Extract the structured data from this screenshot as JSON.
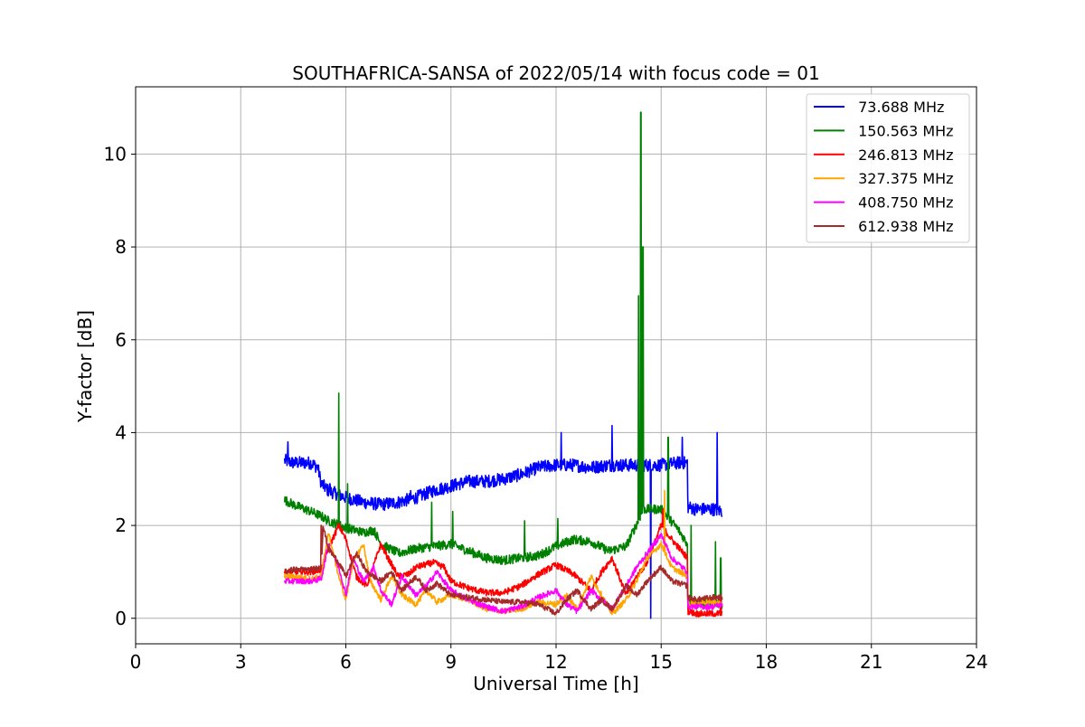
{
  "chart_data": {
    "type": "line",
    "title": "SOUTHAFRICA-SANSA of 2022/05/14 with focus code = 01",
    "xlabel": "Universal Time [h]",
    "ylabel": "Y-factor [dB]",
    "xlim": [
      0,
      24
    ],
    "ylim": [
      -0.55,
      11.45
    ],
    "x_ticks": [
      0,
      3,
      6,
      9,
      12,
      15,
      18,
      21,
      24
    ],
    "x_tick_labels": [
      "0",
      "3",
      "6",
      "9",
      "12",
      "15",
      "18",
      "21",
      "24"
    ],
    "y_ticks": [
      0,
      2,
      4,
      6,
      8,
      10
    ],
    "y_tick_labels": [
      "0",
      "2",
      "4",
      "6",
      "8",
      "10"
    ],
    "grid": true,
    "legend_position": "top-right",
    "series": [
      {
        "name": " 73.688 MHz",
        "color": "#0000ff",
        "noise": 0.14,
        "x": [
          4.25,
          4.5,
          5.0,
          5.2,
          5.3,
          5.5,
          6.0,
          6.5,
          7.0,
          7.5,
          8.0,
          8.5,
          9.0,
          9.5,
          10.0,
          10.5,
          11.0,
          11.5,
          12.0,
          12.5,
          13.0,
          13.5,
          14.0,
          14.5,
          15.0,
          15.5,
          15.75,
          15.76,
          16.0,
          16.5,
          16.75
        ],
        "y": [
          3.4,
          3.35,
          3.35,
          3.25,
          2.9,
          2.75,
          2.6,
          2.5,
          2.45,
          2.5,
          2.6,
          2.75,
          2.85,
          2.95,
          2.95,
          3.0,
          3.1,
          3.25,
          3.3,
          3.3,
          3.25,
          3.3,
          3.3,
          3.3,
          3.3,
          3.35,
          3.35,
          2.4,
          2.35,
          2.35,
          2.3
        ],
        "spikes": [
          [
            4.35,
            3.8
          ],
          [
            5.55,
            2.9
          ],
          [
            7.85,
            2.75
          ],
          [
            10.9,
            3.2
          ],
          [
            12.15,
            4.0
          ],
          [
            13.6,
            4.15
          ],
          [
            14.4,
            4.05
          ],
          [
            14.7,
            0.0
          ],
          [
            15.6,
            3.9
          ],
          [
            16.6,
            4.0
          ]
        ]
      },
      {
        "name": " 150.563 MHz",
        "color": "#008000",
        "noise": 0.1,
        "x": [
          4.25,
          4.5,
          5.0,
          5.3,
          5.5,
          6.0,
          6.5,
          6.8,
          7.0,
          7.5,
          8.0,
          8.5,
          9.0,
          9.5,
          10.0,
          10.5,
          11.0,
          11.5,
          12.0,
          12.5,
          13.0,
          13.5,
          14.0,
          14.5,
          15.0,
          15.5,
          15.75,
          15.76,
          16.0,
          16.5,
          16.75
        ],
        "y": [
          2.55,
          2.45,
          2.3,
          2.2,
          2.1,
          1.95,
          1.85,
          1.9,
          1.6,
          1.4,
          1.5,
          1.55,
          1.6,
          1.45,
          1.3,
          1.25,
          1.3,
          1.35,
          1.55,
          1.7,
          1.65,
          1.45,
          1.55,
          2.35,
          2.35,
          1.9,
          1.6,
          0.35,
          0.3,
          0.35,
          0.3
        ],
        "spikes": [
          [
            5.8,
            4.85
          ],
          [
            6.05,
            2.9
          ],
          [
            8.45,
            2.5
          ],
          [
            9.05,
            2.3
          ],
          [
            11.1,
            2.1
          ],
          [
            12.05,
            2.15
          ],
          [
            14.35,
            6.95
          ],
          [
            14.42,
            10.9
          ],
          [
            14.48,
            8.0
          ],
          [
            15.2,
            3.9
          ],
          [
            15.85,
            2.0
          ],
          [
            16.55,
            1.65
          ],
          [
            16.7,
            1.3
          ]
        ]
      },
      {
        "name": " 246.813 MHz",
        "color": "#ff0000",
        "noise": 0.07,
        "x": [
          4.25,
          4.5,
          5.0,
          5.3,
          5.5,
          5.8,
          6.0,
          6.3,
          6.6,
          7.0,
          7.2,
          7.5,
          7.8,
          8.0,
          8.5,
          8.8,
          9.0,
          9.5,
          10.0,
          10.5,
          11.0,
          11.5,
          12.0,
          12.5,
          13.0,
          13.3,
          13.6,
          14.0,
          14.3,
          14.6,
          15.0,
          15.3,
          15.75,
          15.76,
          16.0,
          16.5,
          16.75
        ],
        "y": [
          1.0,
          1.0,
          1.0,
          1.05,
          1.5,
          2.0,
          1.7,
          0.9,
          0.7,
          1.6,
          1.3,
          0.9,
          0.95,
          1.1,
          1.2,
          1.1,
          0.8,
          0.65,
          0.55,
          0.55,
          0.7,
          0.95,
          1.15,
          0.95,
          0.6,
          1.0,
          1.3,
          0.5,
          0.9,
          1.2,
          2.0,
          1.7,
          1.3,
          0.15,
          0.1,
          0.1,
          0.1
        ],
        "spikes": [
          [
            15.05,
            2.35
          ],
          [
            16.7,
            0.5
          ]
        ]
      },
      {
        "name": " 327.375 MHz",
        "color": "#ffa500",
        "noise": 0.06,
        "x": [
          4.25,
          4.5,
          5.0,
          5.3,
          5.5,
          5.8,
          6.0,
          6.2,
          6.5,
          6.7,
          7.0,
          7.3,
          7.6,
          8.0,
          8.3,
          8.6,
          9.0,
          9.5,
          10.0,
          10.5,
          11.0,
          11.5,
          12.0,
          12.3,
          12.6,
          13.0,
          13.3,
          13.6,
          14.0,
          14.3,
          14.6,
          15.0,
          15.3,
          15.75,
          15.76,
          16.0,
          16.5,
          16.75
        ],
        "y": [
          0.9,
          0.9,
          0.85,
          0.9,
          1.85,
          0.9,
          0.4,
          1.2,
          1.6,
          0.8,
          0.4,
          0.9,
          0.5,
          0.3,
          0.6,
          0.35,
          0.5,
          0.4,
          0.2,
          0.15,
          0.2,
          0.35,
          0.3,
          0.5,
          0.2,
          0.9,
          0.5,
          0.1,
          0.4,
          0.8,
          1.3,
          1.6,
          1.1,
          0.9,
          0.3,
          0.35,
          0.35,
          0.3
        ],
        "spikes": [
          [
            15.1,
            2.75
          ]
        ]
      },
      {
        "name": " 408.750 MHz",
        "color": "#ff00ff",
        "noise": 0.06,
        "x": [
          4.25,
          4.5,
          5.0,
          5.3,
          5.5,
          5.8,
          6.0,
          6.2,
          6.5,
          6.8,
          7.0,
          7.3,
          7.6,
          8.0,
          8.3,
          8.6,
          9.0,
          9.5,
          10.0,
          10.5,
          11.0,
          11.5,
          12.0,
          12.3,
          12.6,
          13.0,
          13.3,
          13.6,
          14.0,
          14.3,
          14.6,
          15.0,
          15.3,
          15.75,
          15.76,
          16.0,
          16.5,
          16.75
        ],
        "y": [
          0.8,
          0.8,
          0.8,
          0.85,
          1.6,
          1.1,
          0.5,
          1.3,
          0.8,
          1.1,
          0.6,
          0.3,
          0.9,
          0.5,
          0.7,
          1.0,
          0.6,
          0.4,
          0.25,
          0.15,
          0.25,
          0.45,
          0.6,
          0.3,
          0.15,
          0.6,
          0.4,
          0.2,
          0.7,
          1.1,
          1.4,
          1.8,
          1.3,
          1.0,
          0.25,
          0.25,
          0.25,
          0.3
        ],
        "spikes": []
      },
      {
        "name": " 612.938 MHz",
        "color": "#a52a2a",
        "noise": 0.06,
        "x": [
          4.25,
          4.5,
          5.0,
          5.3,
          5.35,
          5.5,
          5.8,
          6.0,
          6.3,
          6.6,
          7.0,
          7.3,
          7.6,
          8.0,
          8.3,
          8.6,
          9.0,
          9.5,
          10.0,
          10.5,
          11.0,
          11.5,
          12.0,
          12.3,
          12.6,
          13.0,
          13.3,
          13.6,
          14.0,
          14.3,
          14.6,
          15.0,
          15.3,
          15.75,
          15.76,
          16.0,
          16.5,
          16.75
        ],
        "y": [
          1.0,
          1.05,
          1.05,
          1.1,
          2.0,
          1.5,
          1.2,
          0.9,
          1.4,
          1.0,
          0.8,
          1.0,
          0.6,
          0.9,
          0.6,
          0.75,
          0.5,
          0.45,
          0.4,
          0.35,
          0.35,
          0.3,
          0.1,
          0.4,
          0.6,
          0.2,
          0.4,
          0.2,
          0.7,
          0.5,
          0.8,
          1.1,
          0.8,
          0.7,
          0.45,
          0.4,
          0.45,
          0.45
        ],
        "spikes": [
          [
            5.3,
            2.0
          ]
        ]
      }
    ]
  }
}
